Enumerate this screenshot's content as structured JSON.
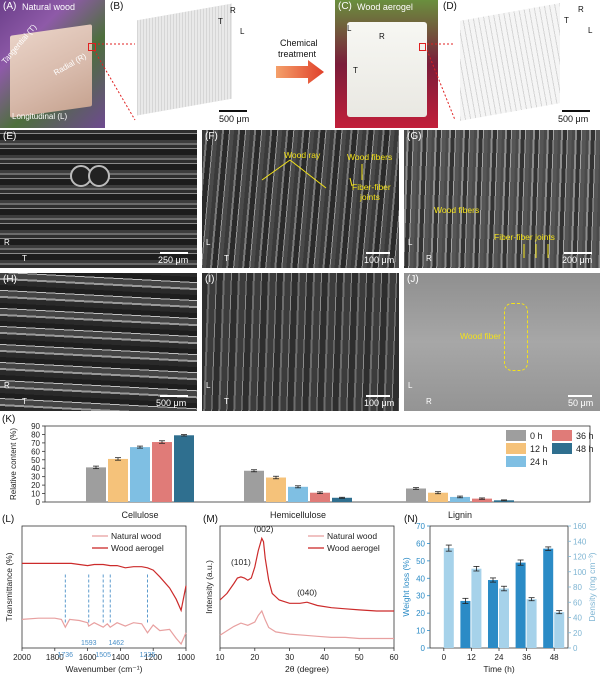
{
  "panels": {
    "A": {
      "label": "(A)",
      "title": "Natural wood",
      "tangential": "Tangential (T)",
      "radial": "Radial (R)",
      "longitudinal": "Longitudinal (L)"
    },
    "B": {
      "label": "(B)",
      "scale": "500 μm",
      "axes": [
        "R",
        "T",
        "L"
      ]
    },
    "arrow": {
      "text_line1": "Chemical",
      "text_line2": "treatment"
    },
    "C": {
      "label": "(C)",
      "title": "Wood aerogel",
      "axes": [
        "L",
        "R",
        "T"
      ]
    },
    "D": {
      "label": "(D)",
      "scale": "500 μm",
      "axes": [
        "R",
        "T",
        "L"
      ]
    },
    "E": {
      "label": "(E)",
      "scale": "250 μm",
      "axes": [
        "R",
        "T"
      ]
    },
    "F": {
      "label": "(F)",
      "scale": "100 μm",
      "axes": [
        "L",
        "T"
      ],
      "notes": [
        "Wood ray",
        "Wood fibers",
        "Fiber-fiber",
        "joints"
      ]
    },
    "G": {
      "label": "(G)",
      "scale": "200 μm",
      "axes": [
        "L",
        "R"
      ],
      "notes": [
        "Wood fibers",
        "Fiber-fiber joints"
      ]
    },
    "H": {
      "label": "(H)",
      "scale": "500 μm",
      "axes": [
        "R",
        "T"
      ]
    },
    "I": {
      "label": "(I)",
      "scale": "100 μm",
      "axes": [
        "L",
        "T"
      ]
    },
    "J": {
      "label": "(J)",
      "scale": "50 μm",
      "axes": [
        "L",
        "R"
      ],
      "notes": [
        "Wood fiber"
      ]
    },
    "K": {
      "label": "(K)"
    },
    "L": {
      "label": "(L)"
    },
    "M": {
      "label": "(M)"
    },
    "N": {
      "label": "(N)"
    }
  },
  "chart_data": [
    {
      "id": "K",
      "type": "bar",
      "ylabel": "Relative content (%)",
      "ylim": [
        0,
        90
      ],
      "yticks": [
        0,
        10,
        20,
        30,
        40,
        50,
        60,
        70,
        80,
        90
      ],
      "categories": [
        "Cellulose",
        "Hemicellulose",
        "Lignin"
      ],
      "legend_position": "top-right",
      "series": [
        {
          "name": "0 h",
          "color": "#9e9e9e",
          "values": [
            41,
            37,
            16
          ],
          "errors": [
            1.5,
            1.2,
            1.0
          ]
        },
        {
          "name": "12 h",
          "color": "#f5c27a",
          "values": [
            51,
            29,
            11
          ],
          "errors": [
            1.5,
            1.5,
            1.2
          ]
        },
        {
          "name": "24 h",
          "color": "#7fbfe3",
          "values": [
            65,
            18,
            6
          ],
          "errors": [
            1.2,
            1.2,
            1.0
          ]
        },
        {
          "name": "36 h",
          "color": "#e07b78",
          "values": [
            71,
            11,
            4
          ],
          "errors": [
            1.5,
            1.0,
            0.8
          ]
        },
        {
          "name": "48 h",
          "color": "#2f6f8f",
          "values": [
            79,
            5,
            2
          ],
          "errors": [
            0.8,
            0.6,
            0.5
          ]
        }
      ]
    },
    {
      "id": "L",
      "type": "line",
      "xlabel": "Wavenumber (cm⁻¹)",
      "ylabel": "Transmittance (%)",
      "xlim": [
        2000,
        1000
      ],
      "xticks": [
        2000,
        1800,
        1600,
        1400,
        1200,
        1000
      ],
      "annotations": [
        "1736",
        "1593",
        "1505",
        "1462",
        "1235"
      ],
      "series": [
        {
          "name": "Natural wood",
          "color": "#e8a0a0",
          "x": [
            2000,
            1900,
            1800,
            1760,
            1736,
            1710,
            1650,
            1600,
            1593,
            1560,
            1505,
            1480,
            1462,
            1420,
            1370,
            1320,
            1270,
            1235,
            1200,
            1160,
            1100,
            1060,
            1030,
            1000
          ],
          "y": [
            0.22,
            0.23,
            0.23,
            0.22,
            0.15,
            0.22,
            0.21,
            0.19,
            0.16,
            0.19,
            0.15,
            0.18,
            0.15,
            0.19,
            0.16,
            0.19,
            0.18,
            0.1,
            0.17,
            0.12,
            0.13,
            0.05,
            0.0,
            0.1
          ]
        },
        {
          "name": "Wood aerogel",
          "color": "#cc2b2b",
          "x": [
            2000,
            1900,
            1800,
            1736,
            1700,
            1650,
            1600,
            1560,
            1505,
            1462,
            1420,
            1370,
            1320,
            1270,
            1235,
            1200,
            1160,
            1100,
            1060,
            1030,
            1000
          ],
          "y": [
            0.72,
            0.72,
            0.72,
            0.72,
            0.72,
            0.71,
            0.7,
            0.71,
            0.71,
            0.7,
            0.7,
            0.68,
            0.69,
            0.69,
            0.68,
            0.66,
            0.6,
            0.5,
            0.4,
            0.3,
            0.52
          ]
        }
      ]
    },
    {
      "id": "M",
      "type": "line",
      "xlabel": "2θ (degree)",
      "ylabel": "Intensity (a.u.)",
      "xlim": [
        10,
        60
      ],
      "xticks": [
        10,
        20,
        30,
        40,
        50,
        60
      ],
      "annotations": [
        "(101)",
        "(002)",
        "(040)"
      ],
      "series": [
        {
          "name": "Natural wood",
          "color": "#e8a0a0",
          "x": [
            10,
            12,
            14,
            16,
            18,
            20,
            21,
            22,
            23,
            24,
            26,
            30,
            34,
            38,
            42,
            46,
            50,
            55,
            60
          ],
          "y": [
            0.08,
            0.12,
            0.16,
            0.19,
            0.17,
            0.2,
            0.26,
            0.3,
            0.22,
            0.15,
            0.11,
            0.09,
            0.08,
            0.07,
            0.06,
            0.06,
            0.05,
            0.05,
            0.05
          ]
        },
        {
          "name": "Wood aerogel",
          "color": "#cc2b2b",
          "x": [
            10,
            12,
            14,
            15,
            16,
            17,
            18,
            19,
            20,
            21,
            22,
            22.5,
            23,
            24,
            25,
            27,
            30,
            33,
            35,
            38,
            42,
            46,
            50,
            55,
            60
          ],
          "y": [
            0.4,
            0.46,
            0.55,
            0.6,
            0.61,
            0.6,
            0.58,
            0.6,
            0.7,
            0.85,
            0.96,
            0.93,
            0.78,
            0.58,
            0.46,
            0.4,
            0.37,
            0.37,
            0.38,
            0.35,
            0.33,
            0.32,
            0.31,
            0.3,
            0.3
          ]
        }
      ]
    },
    {
      "id": "N",
      "type": "bar",
      "xlabel": "Time (h)",
      "ylabel": "Weight loss (%)",
      "y2label": "Density (mg cm⁻³)",
      "categories": [
        "0",
        "12",
        "24",
        "36",
        "48"
      ],
      "ylim": [
        0,
        70
      ],
      "yticks": [
        0,
        10,
        20,
        30,
        40,
        50,
        60,
        70
      ],
      "y2lim": [
        0,
        160
      ],
      "y2ticks": [
        0,
        20,
        40,
        60,
        80,
        100,
        120,
        140,
        160
      ],
      "series": [
        {
          "name": "Weight loss",
          "color": "#2b8bc6",
          "axis": "left",
          "values": [
            null,
            27,
            39,
            49,
            57
          ],
          "errors": [
            0,
            1.5,
            1.2,
            1.5,
            1.0
          ]
        },
        {
          "name": "Density",
          "color": "#a6d2ea",
          "axis": "right",
          "values": [
            131,
            104,
            78,
            64,
            47
          ],
          "errors": [
            4,
            3,
            3,
            2,
            2
          ]
        }
      ]
    }
  ]
}
